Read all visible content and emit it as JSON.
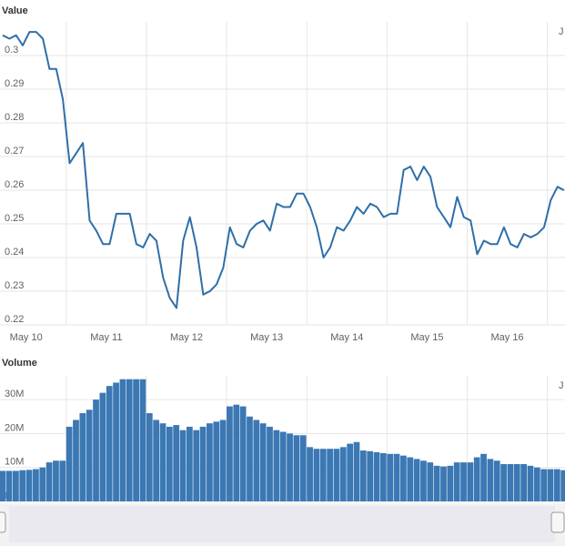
{
  "chart_data": [
    {
      "type": "line",
      "title": "Value",
      "annotation": "J",
      "color": "#2f6fa8",
      "values": [
        0.306,
        0.305,
        0.306,
        0.303,
        0.307,
        0.307,
        0.305,
        0.296,
        0.296,
        0.287,
        0.268,
        0.271,
        0.274,
        0.251,
        0.248,
        0.244,
        0.244,
        0.253,
        0.253,
        0.253,
        0.244,
        0.243,
        0.247,
        0.245,
        0.234,
        0.228,
        0.225,
        0.245,
        0.252,
        0.243,
        0.229,
        0.23,
        0.232,
        0.237,
        0.249,
        0.244,
        0.243,
        0.248,
        0.25,
        0.251,
        0.248,
        0.256,
        0.255,
        0.255,
        0.259,
        0.259,
        0.255,
        0.249,
        0.24,
        0.243,
        0.249,
        0.248,
        0.251,
        0.255,
        0.253,
        0.256,
        0.255,
        0.252,
        0.253,
        0.253,
        0.266,
        0.267,
        0.263,
        0.267,
        0.264,
        0.255,
        0.252,
        0.249,
        0.258,
        0.252,
        0.251,
        0.241,
        0.245,
        0.244,
        0.244,
        0.249,
        0.244,
        0.243,
        0.247,
        0.246,
        0.247,
        0.249,
        0.257,
        0.261,
        0.26
      ],
      "xlim": [
        0,
        84
      ],
      "xticks": [
        {
          "value": 3.5,
          "label": "May 10"
        },
        {
          "value": 15.5,
          "label": "May 11"
        },
        {
          "value": 27.5,
          "label": "May 12"
        },
        {
          "value": 39.5,
          "label": "May 13"
        },
        {
          "value": 51.5,
          "label": "May 14"
        },
        {
          "value": 63.5,
          "label": "May 15"
        },
        {
          "value": 75.5,
          "label": "May 16"
        }
      ],
      "ylim": [
        0.22,
        0.31
      ],
      "yticks": [
        0.22,
        0.23,
        0.24,
        0.25,
        0.26,
        0.27,
        0.28,
        0.29,
        0.3
      ],
      "grid": true
    },
    {
      "type": "bar",
      "title": "Volume",
      "annotation": "J",
      "color": "#3b78b4",
      "values": [
        9000000,
        9000000,
        9000000,
        9200000,
        9300000,
        9500000,
        10000000,
        11500000,
        12000000,
        12000000,
        22000000,
        24000000,
        26000000,
        27000000,
        30000000,
        32000000,
        34000000,
        35000000,
        36000000,
        36000000,
        36000000,
        36000000,
        26000000,
        24000000,
        23000000,
        22000000,
        22500000,
        21000000,
        22000000,
        21000000,
        22000000,
        23000000,
        23500000,
        24000000,
        28000000,
        28500000,
        28000000,
        25000000,
        24000000,
        23000000,
        22000000,
        21000000,
        20500000,
        20000000,
        19500000,
        19500000,
        16000000,
        15500000,
        15500000,
        15500000,
        15500000,
        16000000,
        17000000,
        17500000,
        15000000,
        14800000,
        14500000,
        14200000,
        14000000,
        14000000,
        13500000,
        13000000,
        12500000,
        12000000,
        11500000,
        10500000,
        10300000,
        10500000,
        11500000,
        11500000,
        11500000,
        13000000,
        14000000,
        12500000,
        12000000,
        11000000,
        11000000,
        11000000,
        11000000,
        10500000,
        10000000,
        9500000,
        9500000,
        9500000,
        9200000
      ],
      "xlim": [
        0,
        84
      ],
      "xticks": [
        {
          "value": 3.5,
          "label": "May 10"
        },
        {
          "value": 15.5,
          "label": "May 11"
        },
        {
          "value": 27.5,
          "label": "May 12"
        },
        {
          "value": 39.5,
          "label": "May 13"
        },
        {
          "value": 51.5,
          "label": "May 14"
        },
        {
          "value": 63.5,
          "label": "May 15"
        },
        {
          "value": 75.5,
          "label": "May 16"
        }
      ],
      "ylim": [
        0,
        37000000
      ],
      "yticks": [
        0,
        {
          "value": 10000000,
          "label": "10M"
        },
        {
          "value": 20000000,
          "label": "20M"
        },
        {
          "value": 30000000,
          "label": "30M"
        }
      ],
      "grid": true
    }
  ]
}
